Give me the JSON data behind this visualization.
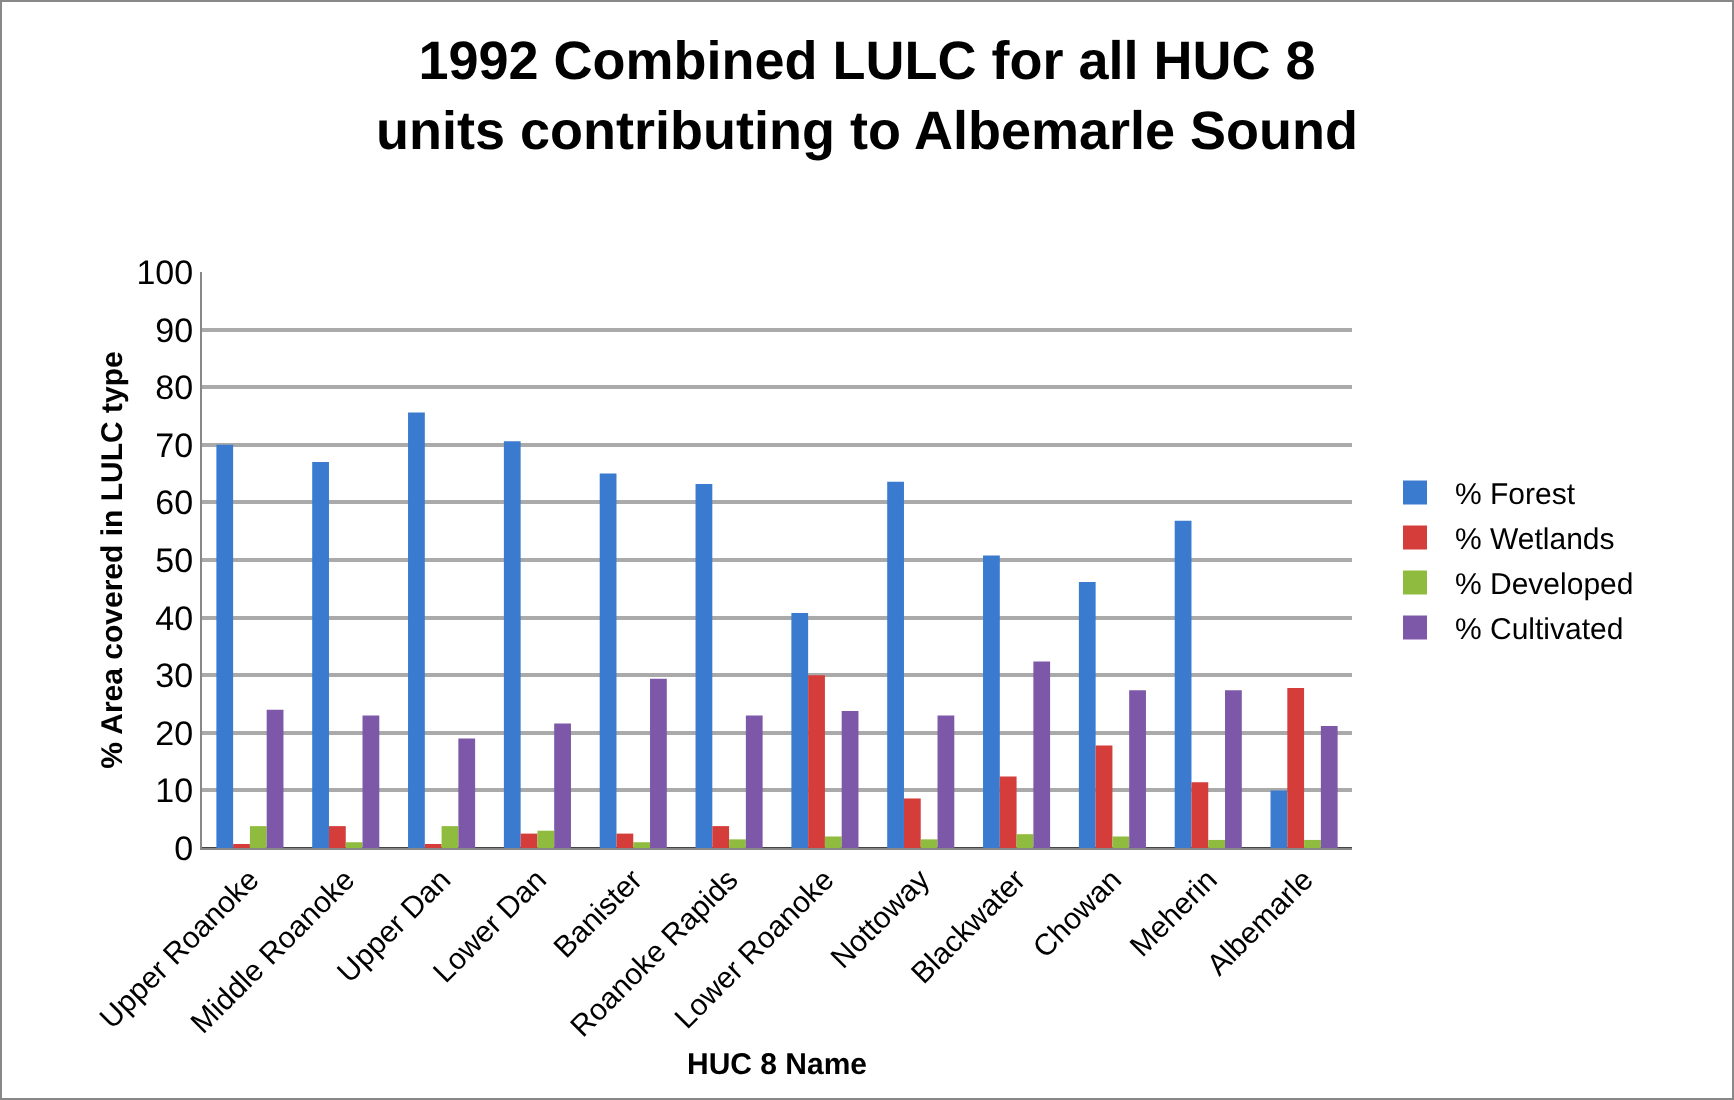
{
  "chart_data": {
    "type": "bar",
    "title": "1992 Combined LULC for all HUC 8 units contributing to Albemarle Sound",
    "xlabel": "HUC 8 Name",
    "ylabel": "% Area covered in LULC type",
    "categories": [
      "Upper Roanoke",
      "Middle Roanoke",
      "Upper Dan",
      "Lower Dan",
      "Banister",
      "Roanoke Rapids",
      "Lower Roanoke",
      "Nottoway",
      "Blackwater",
      "Chowan",
      "Meherin",
      "Albemarle"
    ],
    "series": [
      {
        "name": "% Forest",
        "color": "#3a7bd0",
        "values": [
          70,
          67,
          75.6,
          70.6,
          65,
          63.2,
          40.8,
          63.6,
          50.8,
          46.2,
          56.8,
          10
        ]
      },
      {
        "name": "% Wetlands",
        "color": "#d43d3a",
        "values": [
          0.5,
          3.8,
          0.5,
          2.5,
          2.5,
          3.8,
          30,
          8.6,
          12.4,
          17.8,
          11.4,
          27.8
        ]
      },
      {
        "name": "% Developed",
        "color": "#8fbc3f",
        "values": [
          3.8,
          1,
          3.8,
          3,
          1,
          1.5,
          2,
          1.5,
          2.4,
          2,
          1.4,
          1.4
        ]
      },
      {
        "name": "% Cultivated",
        "color": "#7d58a8",
        "values": [
          24,
          23,
          19,
          21.6,
          29.4,
          23,
          23.8,
          23,
          32.4,
          27.4,
          27.4,
          21.2
        ]
      }
    ],
    "ylim": [
      0,
      100
    ],
    "yticks": [
      0,
      10,
      20,
      30,
      40,
      50,
      60,
      70,
      80,
      90,
      100
    ],
    "grid": "y",
    "legend": "right"
  }
}
